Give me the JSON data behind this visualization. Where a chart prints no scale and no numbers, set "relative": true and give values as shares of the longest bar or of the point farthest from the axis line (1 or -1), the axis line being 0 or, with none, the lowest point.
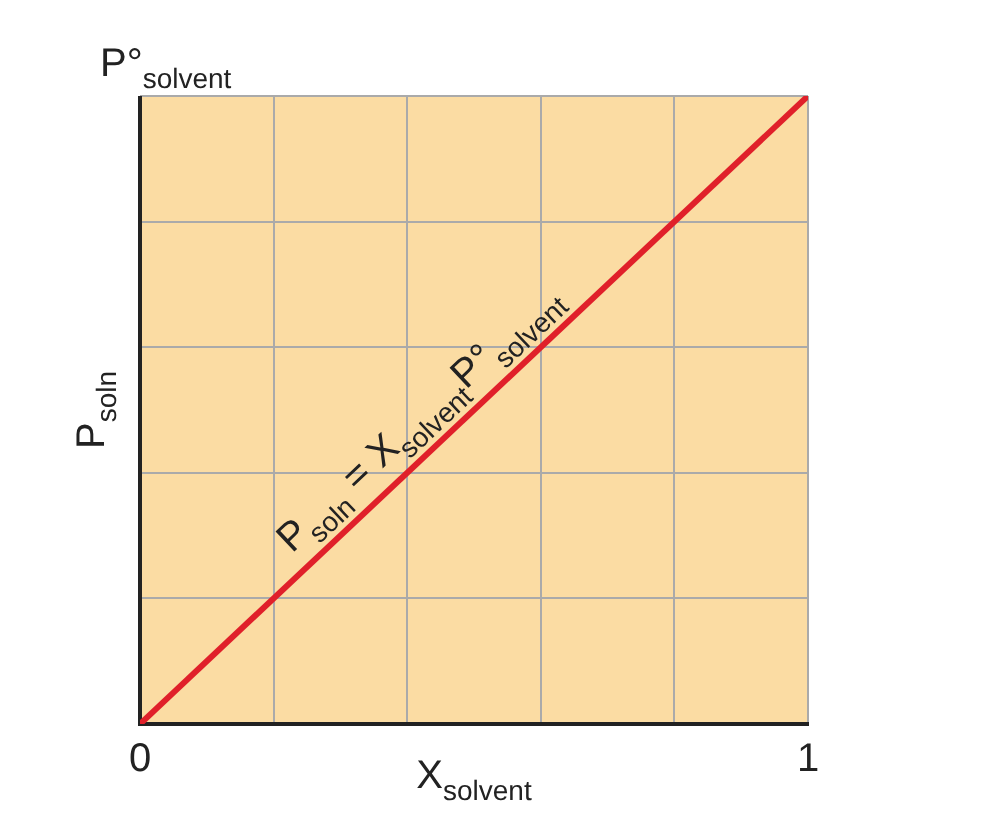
{
  "chart_data": {
    "type": "line",
    "xlabel": "X$_{solvent}$",
    "ylabel": "P$_{soln}$",
    "relative": true,
    "x": [
      0,
      1
    ],
    "series": [
      {
        "color": "#e0202a",
        "values": [
          0,
          1
        ]
      }
    ],
    "xlim": [
      0,
      1
    ],
    "xticks": [
      0,
      {
        "value": 0.2,
        "label": null
      },
      {
        "value": 0.4,
        "label": null
      },
      {
        "value": 0.6,
        "label": null
      },
      {
        "value": 0.8,
        "label": null
      },
      1
    ],
    "annotations": [
      "P°$_{solvent}$",
      {
        "text": "P$_{soln}$ = X$_{solvent}$P°$_{solvent}$",
        "x": 0.45,
        "y": 0.45
      }
    ],
    "grid": true,
    "legend": false,
    "marker": "none",
    "line_style": "solid"
  }
}
